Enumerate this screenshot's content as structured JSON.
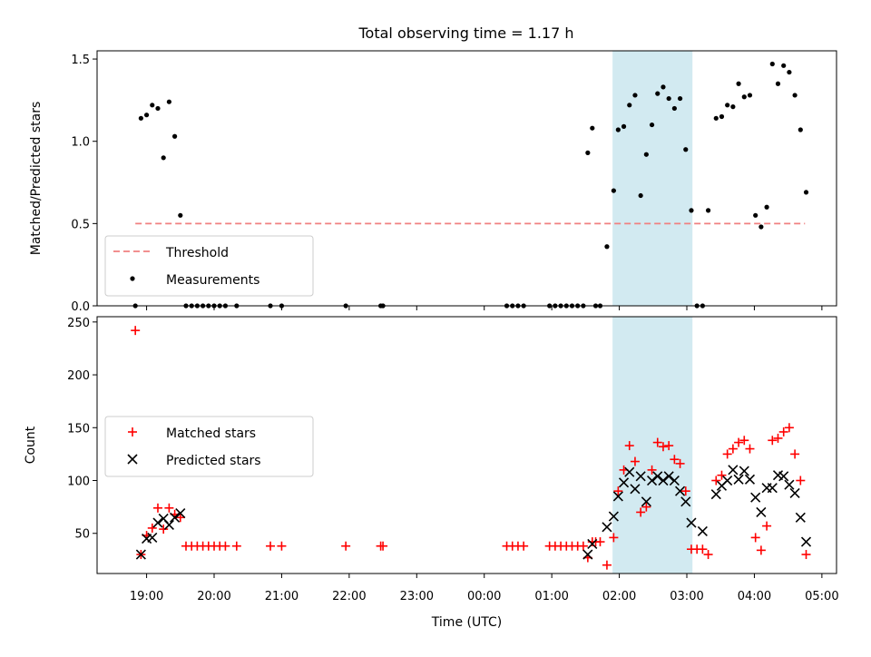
{
  "chart_data": {
    "title": "Total observing time = 1.17 h",
    "shaded_span": {
      "start": "01:54",
      "end": "03:05",
      "color": "#add8e6"
    },
    "xlabel": "Time (UTC)",
    "x_ticks": [
      "19:00",
      "20:00",
      "21:00",
      "22:00",
      "23:00",
      "00:00",
      "01:00",
      "02:00",
      "03:00",
      "04:00",
      "05:00"
    ],
    "panels": [
      {
        "type": "scatter",
        "ylabel": "Matched/Predicted stars",
        "ylim": [
          0,
          1.55
        ],
        "y_ticks": [
          "0.0",
          "0.5",
          "1.0",
          "1.5"
        ],
        "legend": {
          "placement": "lower-left",
          "entries": [
            {
              "label": "Threshold",
              "style": "dashed-line",
              "color": "#f08080"
            },
            {
              "label": "Measurements",
              "style": "dot",
              "color": "#000000"
            }
          ]
        },
        "threshold": {
          "value": 0.5,
          "x_from": "18:50",
          "x_to": "04:45",
          "color": "#f08080"
        },
        "series": [
          {
            "name": "Measurements",
            "color": "#000000",
            "points": [
              [
                "18:50",
                0.0
              ],
              [
                "18:55",
                1.14
              ],
              [
                "19:00",
                1.16
              ],
              [
                "19:05",
                1.22
              ],
              [
                "19:10",
                1.2
              ],
              [
                "19:15",
                0.9
              ],
              [
                "19:20",
                1.24
              ],
              [
                "19:25",
                1.03
              ],
              [
                "19:30",
                0.55
              ],
              [
                "19:35",
                0.0
              ],
              [
                "19:40",
                0.0
              ],
              [
                "19:45",
                0.0
              ],
              [
                "19:50",
                0.0
              ],
              [
                "19:55",
                0.0
              ],
              [
                "20:00",
                0.0
              ],
              [
                "20:05",
                0.0
              ],
              [
                "20:10",
                0.0
              ],
              [
                "20:20",
                0.0
              ],
              [
                "20:50",
                0.0
              ],
              [
                "21:00",
                0.0
              ],
              [
                "21:57",
                0.0
              ],
              [
                "22:28",
                0.0
              ],
              [
                "22:30",
                0.0
              ],
              [
                "00:20",
                0.0
              ],
              [
                "00:25",
                0.0
              ],
              [
                "00:30",
                0.0
              ],
              [
                "00:35",
                0.0
              ],
              [
                "00:58",
                0.0
              ],
              [
                "01:03",
                0.0
              ],
              [
                "01:08",
                0.0
              ],
              [
                "01:13",
                0.0
              ],
              [
                "01:18",
                0.0
              ],
              [
                "01:23",
                0.0
              ],
              [
                "01:28",
                0.0
              ],
              [
                "01:32",
                0.93
              ],
              [
                "01:36",
                1.08
              ],
              [
                "01:39",
                0.0
              ],
              [
                "01:43",
                0.0
              ],
              [
                "01:49",
                0.36
              ],
              [
                "01:55",
                0.7
              ],
              [
                "01:59",
                1.07
              ],
              [
                "02:04",
                1.09
              ],
              [
                "02:09",
                1.22
              ],
              [
                "02:14",
                1.28
              ],
              [
                "02:19",
                0.67
              ],
              [
                "02:24",
                0.92
              ],
              [
                "02:29",
                1.1
              ],
              [
                "02:34",
                1.29
              ],
              [
                "02:39",
                1.33
              ],
              [
                "02:44",
                1.26
              ],
              [
                "02:49",
                1.2
              ],
              [
                "02:54",
                1.26
              ],
              [
                "02:59",
                0.95
              ],
              [
                "03:04",
                0.58
              ],
              [
                "03:09",
                0.0
              ],
              [
                "03:14",
                0.0
              ],
              [
                "03:19",
                0.58
              ],
              [
                "03:26",
                1.14
              ],
              [
                "03:31",
                1.15
              ],
              [
                "03:36",
                1.22
              ],
              [
                "03:41",
                1.21
              ],
              [
                "03:46",
                1.35
              ],
              [
                "03:51",
                1.27
              ],
              [
                "03:56",
                1.28
              ],
              [
                "04:01",
                0.55
              ],
              [
                "04:06",
                0.48
              ],
              [
                "04:11",
                0.6
              ],
              [
                "04:16",
                1.47
              ],
              [
                "04:21",
                1.35
              ],
              [
                "04:26",
                1.46
              ],
              [
                "04:31",
                1.42
              ],
              [
                "04:36",
                1.28
              ],
              [
                "04:41",
                1.07
              ],
              [
                "04:46",
                0.69
              ]
            ]
          }
        ]
      },
      {
        "type": "scatter",
        "ylabel": "Count",
        "ylim": [
          12,
          255
        ],
        "y_ticks": [
          "50",
          "100",
          "150",
          "200",
          "250"
        ],
        "legend": {
          "placement": "center-left",
          "entries": [
            {
              "label": "Matched stars",
              "style": "plus",
              "color": "#ff0000"
            },
            {
              "label": "Predicted stars",
              "style": "x",
              "color": "#000000"
            }
          ]
        },
        "series": [
          {
            "name": "Matched stars",
            "color": "#ff0000",
            "marker": "plus",
            "points": [
              [
                "18:50",
                242
              ],
              [
                "18:55",
                30
              ],
              [
                "19:00",
                48
              ],
              [
                "19:05",
                55
              ],
              [
                "19:10",
                74
              ],
              [
                "19:15",
                54
              ],
              [
                "19:20",
                74
              ],
              [
                "19:25",
                68
              ],
              [
                "19:30",
                65
              ],
              [
                "19:35",
                38
              ],
              [
                "19:40",
                38
              ],
              [
                "19:45",
                38
              ],
              [
                "19:50",
                38
              ],
              [
                "19:55",
                38
              ],
              [
                "20:00",
                38
              ],
              [
                "20:05",
                38
              ],
              [
                "20:10",
                38
              ],
              [
                "20:20",
                38
              ],
              [
                "20:50",
                38
              ],
              [
                "21:00",
                38
              ],
              [
                "21:57",
                38
              ],
              [
                "22:28",
                38
              ],
              [
                "22:30",
                38
              ],
              [
                "00:20",
                38
              ],
              [
                "00:25",
                38
              ],
              [
                "00:30",
                38
              ],
              [
                "00:35",
                38
              ],
              [
                "00:58",
                38
              ],
              [
                "01:03",
                38
              ],
              [
                "01:08",
                38
              ],
              [
                "01:13",
                38
              ],
              [
                "01:18",
                38
              ],
              [
                "01:23",
                38
              ],
              [
                "01:28",
                38
              ],
              [
                "01:32",
                27
              ],
              [
                "01:36",
                42
              ],
              [
                "01:39",
                42
              ],
              [
                "01:43",
                42
              ],
              [
                "01:49",
                20
              ],
              [
                "01:55",
                46
              ],
              [
                "01:59",
                90
              ],
              [
                "02:04",
                110
              ],
              [
                "02:09",
                133
              ],
              [
                "02:14",
                118
              ],
              [
                "02:19",
                70
              ],
              [
                "02:24",
                75
              ],
              [
                "02:29",
                110
              ],
              [
                "02:34",
                136
              ],
              [
                "02:39",
                132
              ],
              [
                "02:44",
                133
              ],
              [
                "02:49",
                120
              ],
              [
                "02:54",
                116
              ],
              [
                "02:59",
                90
              ],
              [
                "03:04",
                35
              ],
              [
                "03:09",
                35
              ],
              [
                "03:14",
                35
              ],
              [
                "03:19",
                30
              ],
              [
                "03:26",
                100
              ],
              [
                "03:31",
                105
              ],
              [
                "03:36",
                125
              ],
              [
                "03:41",
                130
              ],
              [
                "03:46",
                136
              ],
              [
                "03:51",
                138
              ],
              [
                "03:56",
                130
              ],
              [
                "04:01",
                46
              ],
              [
                "04:06",
                34
              ],
              [
                "04:11",
                57
              ],
              [
                "04:16",
                138
              ],
              [
                "04:21",
                140
              ],
              [
                "04:26",
                146
              ],
              [
                "04:31",
                150
              ],
              [
                "04:36",
                125
              ],
              [
                "04:41",
                100
              ],
              [
                "04:46",
                30
              ]
            ]
          },
          {
            "name": "Predicted stars",
            "color": "#000000",
            "marker": "x",
            "points": [
              [
                "18:55",
                30
              ],
              [
                "19:00",
                45
              ],
              [
                "19:05",
                46
              ],
              [
                "19:10",
                60
              ],
              [
                "19:15",
                64
              ],
              [
                "19:20",
                58
              ],
              [
                "19:25",
                65
              ],
              [
                "19:30",
                69
              ],
              [
                "01:32",
                30
              ],
              [
                "01:36",
                40
              ],
              [
                "01:49",
                56
              ],
              [
                "01:55",
                66
              ],
              [
                "01:59",
                85
              ],
              [
                "02:04",
                98
              ],
              [
                "02:09",
                108
              ],
              [
                "02:14",
                92
              ],
              [
                "02:19",
                104
              ],
              [
                "02:24",
                80
              ],
              [
                "02:29",
                100
              ],
              [
                "02:34",
                104
              ],
              [
                "02:39",
                100
              ],
              [
                "02:44",
                104
              ],
              [
                "02:49",
                100
              ],
              [
                "02:54",
                90
              ],
              [
                "02:59",
                80
              ],
              [
                "03:04",
                60
              ],
              [
                "03:14",
                52
              ],
              [
                "03:26",
                87
              ],
              [
                "03:31",
                95
              ],
              [
                "03:36",
                100
              ],
              [
                "03:41",
                110
              ],
              [
                "03:46",
                101
              ],
              [
                "03:51",
                109
              ],
              [
                "03:56",
                101
              ],
              [
                "04:01",
                84
              ],
              [
                "04:06",
                70
              ],
              [
                "04:11",
                93
              ],
              [
                "04:16",
                93
              ],
              [
                "04:21",
                105
              ],
              [
                "04:26",
                104
              ],
              [
                "04:31",
                96
              ],
              [
                "04:36",
                88
              ],
              [
                "04:41",
                65
              ],
              [
                "04:46",
                42
              ]
            ]
          }
        ]
      }
    ]
  }
}
